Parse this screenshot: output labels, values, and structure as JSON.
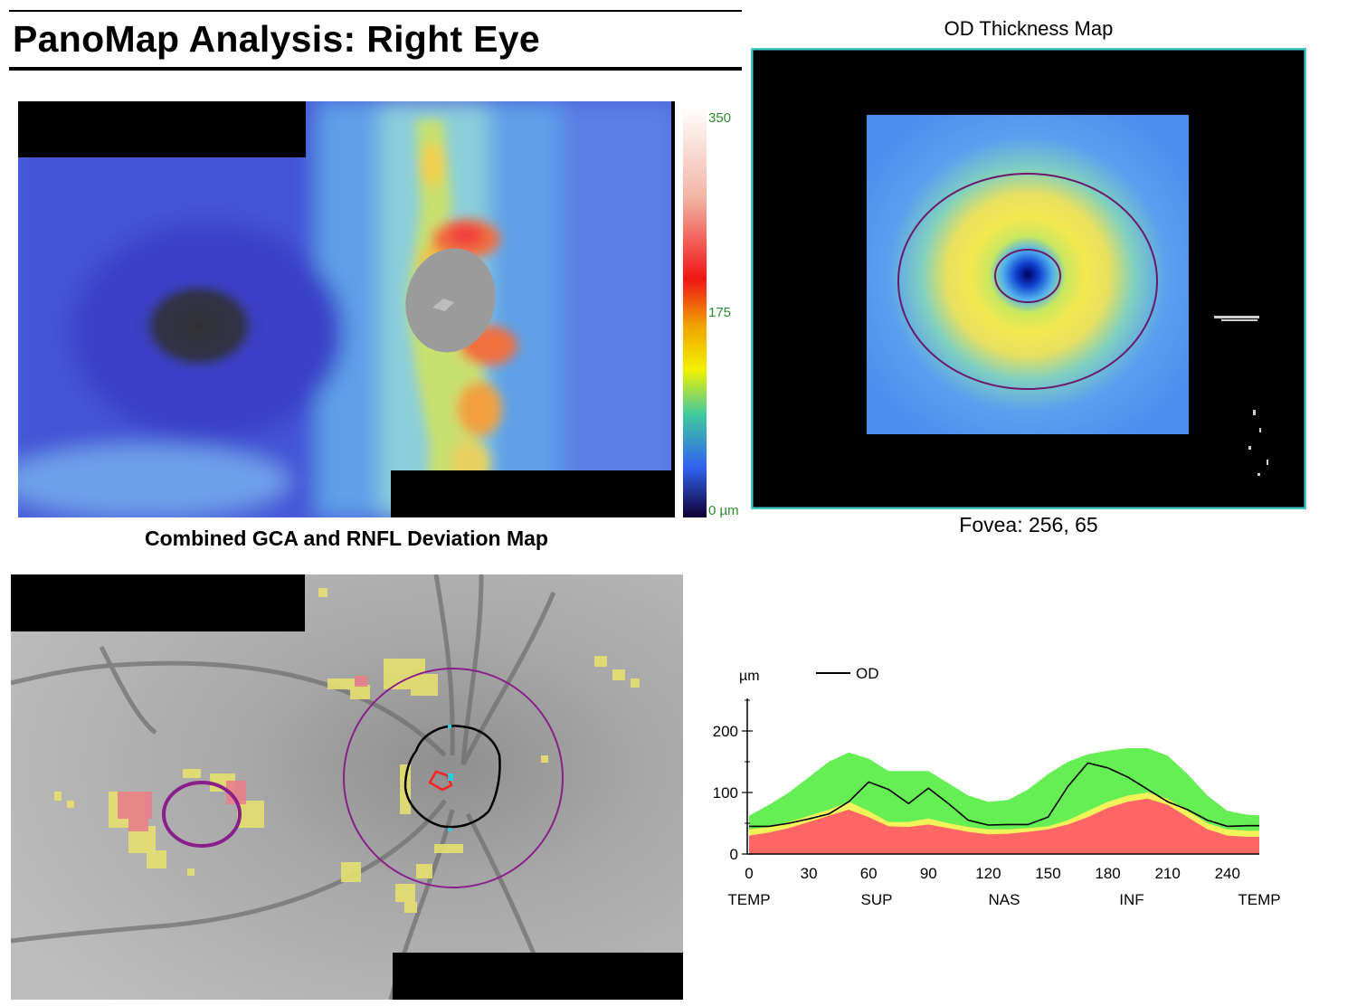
{
  "report": {
    "title": "PanoMap Analysis: Right Eye"
  },
  "deviation_map": {
    "caption": "Combined GCA and RNFL Deviation Map",
    "colorbar": {
      "labels": [
        "350",
        "175",
        "0 µm"
      ],
      "label_color": "#2e8b2e"
    }
  },
  "thickness_map": {
    "title": "OD Thickness Map",
    "fovea": "Fovea: 256, 65",
    "frame_color": "#3fc8c8"
  },
  "fundus": {
    "overlay_colors": {
      "yellow": "#e6e070",
      "red": "#e8808a",
      "circle": "#8a1f8a",
      "disc_margin": "#000000"
    }
  },
  "chart_data": {
    "type": "area",
    "ylabel": "µm",
    "legend": {
      "entries": [
        "OD"
      ],
      "position": "top"
    },
    "xlim": [
      0,
      256
    ],
    "ylim": [
      0,
      250
    ],
    "xticks": [
      0,
      30,
      60,
      90,
      120,
      150,
      180,
      210,
      240
    ],
    "yticks": [
      0,
      100,
      200
    ],
    "sector_labels": [
      "TEMP",
      "SUP",
      "NAS",
      "INF",
      "TEMP"
    ],
    "colors": {
      "red": "#ff6666",
      "yellow": "#f2f25a",
      "green": "#66ee55",
      "line": "#000000"
    },
    "x": [
      0,
      10,
      20,
      30,
      40,
      50,
      60,
      70,
      80,
      90,
      100,
      110,
      120,
      130,
      140,
      150,
      160,
      170,
      180,
      190,
      200,
      210,
      220,
      230,
      240,
      250,
      256
    ],
    "bands": [
      {
        "color": "red",
        "upper": [
          30,
          35,
          42,
          52,
          62,
          72,
          60,
          45,
          44,
          48,
          42,
          36,
          32,
          33,
          36,
          40,
          48,
          60,
          75,
          85,
          90,
          80,
          60,
          40,
          30,
          28,
          28
        ]
      },
      {
        "color": "yellow",
        "upper": [
          40,
          44,
          52,
          62,
          72,
          85,
          70,
          52,
          52,
          58,
          50,
          44,
          40,
          40,
          42,
          45,
          55,
          70,
          85,
          95,
          100,
          90,
          70,
          50,
          40,
          38,
          38
        ]
      },
      {
        "color": "green",
        "upper": [
          62,
          80,
          100,
          125,
          150,
          165,
          155,
          135,
          135,
          135,
          115,
          95,
          85,
          88,
          105,
          130,
          150,
          162,
          168,
          172,
          172,
          160,
          130,
          95,
          70,
          64,
          63
        ]
      }
    ],
    "series": [
      {
        "name": "OD",
        "values": [
          45,
          45,
          50,
          57,
          65,
          85,
          117,
          105,
          82,
          107,
          82,
          55,
          47,
          48,
          48,
          60,
          110,
          148,
          140,
          125,
          105,
          85,
          72,
          55,
          45,
          46,
          46
        ]
      }
    ]
  }
}
